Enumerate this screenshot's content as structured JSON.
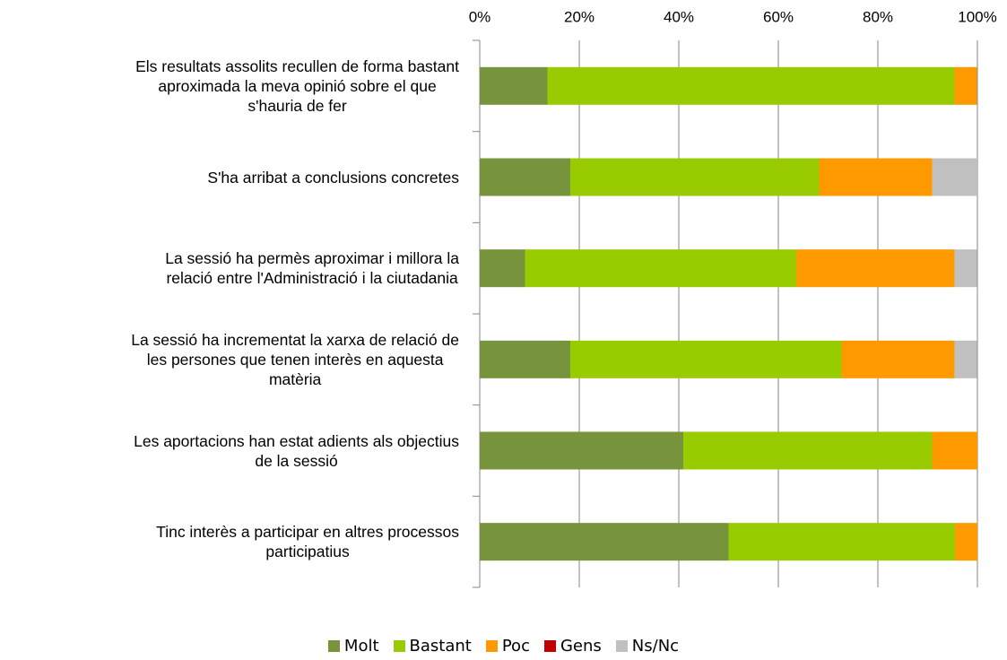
{
  "chart_data": {
    "type": "stacked-barh",
    "categories": [
      "Els resultats assolits recullen de forma bastant\naproximada la meva opinió sobre el que\ns'hauria  de fer",
      "S'ha arribat a conclusions concretes",
      "La sessió ha permès aproximar i millora la\nrelació entre l'Administració i la ciutadania",
      "La sessió ha incrementat la xarxa de relació de\nles persones que tenen interès en aquesta\nmatèria",
      "Les aportacions han estat adients als objectius\nde la sessió",
      "Tinc interès a participar en altres processos\nparticipatius"
    ],
    "series": [
      {
        "name": "Molt",
        "color": "#77933c",
        "values": [
          13.6,
          18.2,
          9.1,
          18.2,
          40.9,
          50.0
        ]
      },
      {
        "name": "Bastant",
        "color": "#99cc00",
        "values": [
          81.8,
          50.0,
          54.5,
          54.5,
          50.0,
          45.5
        ]
      },
      {
        "name": "Poc",
        "color": "#ff9900",
        "values": [
          4.5,
          22.7,
          31.8,
          22.7,
          9.1,
          4.5
        ]
      },
      {
        "name": "Gens",
        "color": "#c00000",
        "values": [
          0,
          0,
          0,
          0,
          0,
          0
        ]
      },
      {
        "name": "Ns/Nc",
        "color": "#c0c0c0",
        "values": [
          0,
          9.1,
          4.5,
          4.5,
          0,
          0
        ]
      }
    ],
    "xlim": [
      0,
      100
    ],
    "xticks": [
      {
        "value": 0,
        "label": "0%"
      },
      {
        "value": 20,
        "label": "20%"
      },
      {
        "value": 40,
        "label": "40%"
      },
      {
        "value": 60,
        "label": "60%"
      },
      {
        "value": 80,
        "label": "80%"
      },
      {
        "value": 100,
        "label": "100%"
      }
    ],
    "grid": true,
    "legend": "bottom"
  }
}
